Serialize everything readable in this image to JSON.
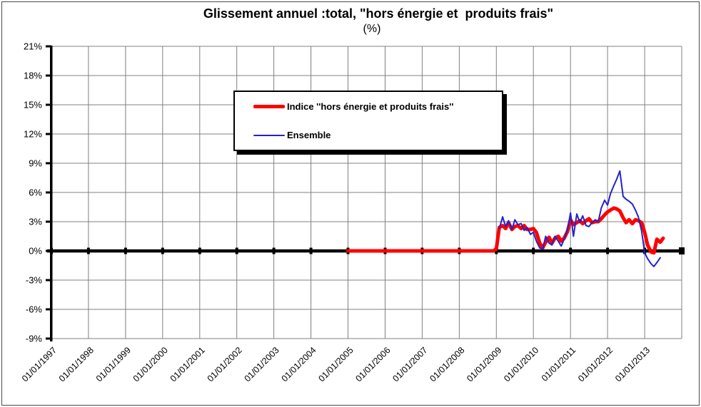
{
  "chart_data": {
    "type": "line",
    "title": "Glissement annuel :total, \"hors énergie et  produits frais\"",
    "subtitle": "(%)",
    "grid": true,
    "legend_position": "upper-center",
    "y_axis": {
      "min": -9,
      "max": 21,
      "step": 3,
      "unit": "%"
    },
    "y_tick_labels": [
      "21%",
      "18%",
      "15%",
      "12%",
      "9%",
      "6%",
      "3%",
      "0%",
      "-3%",
      "-6%",
      "-9%"
    ],
    "x_axis": {
      "domain_years": [
        1997,
        2014
      ],
      "tick_labels": [
        "01/01/1997",
        "01/01/1998",
        "01/01/1999",
        "01/01/2000",
        "01/01/2001",
        "01/01/2002",
        "01/01/2003",
        "01/01/2004",
        "01/01/2005",
        "01/01/2006",
        "01/01/2007",
        "01/01/2008",
        "01/01/2009",
        "01/01/2010",
        "01/01/2011",
        "01/01/2012",
        "01/01/2013"
      ]
    },
    "series": [
      {
        "name": "Indice ''hors énergie et produits frais''",
        "color": "#FF0000",
        "stroke_width": 5,
        "points": [
          [
            2005.0,
            0
          ],
          [
            2006.0,
            0
          ],
          [
            2007.0,
            0
          ],
          [
            2008.0,
            0
          ],
          [
            2008.92,
            0
          ],
          [
            2009.0,
            0.2
          ],
          [
            2009.08,
            2.4
          ],
          [
            2009.17,
            2.6
          ],
          [
            2009.25,
            2.3
          ],
          [
            2009.33,
            2.9
          ],
          [
            2009.42,
            2.2
          ],
          [
            2009.5,
            2.5
          ],
          [
            2009.58,
            2.6
          ],
          [
            2009.67,
            2.3
          ],
          [
            2009.75,
            2.6
          ],
          [
            2009.83,
            2.2
          ],
          [
            2009.92,
            2.2
          ],
          [
            2010.0,
            2.3
          ],
          [
            2010.08,
            1.9
          ],
          [
            2010.17,
            0.8
          ],
          [
            2010.25,
            0.3
          ],
          [
            2010.33,
            0.9
          ],
          [
            2010.42,
            1.4
          ],
          [
            2010.5,
            0.8
          ],
          [
            2010.58,
            1.3
          ],
          [
            2010.67,
            1.5
          ],
          [
            2010.75,
            1.0
          ],
          [
            2010.83,
            1.3
          ],
          [
            2010.92,
            2.0
          ],
          [
            2011.0,
            3.2
          ],
          [
            2011.08,
            2.7
          ],
          [
            2011.17,
            2.9
          ],
          [
            2011.25,
            3.1
          ],
          [
            2011.33,
            2.8
          ],
          [
            2011.42,
            3.1
          ],
          [
            2011.5,
            3.3
          ],
          [
            2011.58,
            2.9
          ],
          [
            2011.67,
            3.0
          ],
          [
            2011.75,
            3.0
          ],
          [
            2011.83,
            3.3
          ],
          [
            2011.92,
            3.7
          ],
          [
            2012.0,
            4.0
          ],
          [
            2012.08,
            4.2
          ],
          [
            2012.17,
            4.4
          ],
          [
            2012.25,
            4.3
          ],
          [
            2012.33,
            4.1
          ],
          [
            2012.42,
            3.4
          ],
          [
            2012.5,
            2.9
          ],
          [
            2012.58,
            3.2
          ],
          [
            2012.67,
            2.8
          ],
          [
            2012.75,
            3.2
          ],
          [
            2012.83,
            3.1
          ],
          [
            2012.92,
            2.9
          ],
          [
            2013.0,
            1.9
          ],
          [
            2013.08,
            0.6
          ],
          [
            2013.17,
            -0.1
          ],
          [
            2013.25,
            -0.2
          ],
          [
            2013.33,
            1.2
          ],
          [
            2013.42,
            0.9
          ],
          [
            2013.5,
            1.3
          ]
        ]
      },
      {
        "name": "Ensemble",
        "color": "#2222CC",
        "stroke_width": 2,
        "points": [
          [
            2009.08,
            2.3
          ],
          [
            2009.17,
            3.5
          ],
          [
            2009.25,
            2.5
          ],
          [
            2009.33,
            3.1
          ],
          [
            2009.42,
            2.2
          ],
          [
            2009.5,
            3.2
          ],
          [
            2009.58,
            2.7
          ],
          [
            2009.67,
            2.8
          ],
          [
            2009.75,
            2.1
          ],
          [
            2009.83,
            2.4
          ],
          [
            2009.92,
            1.7
          ],
          [
            2010.0,
            1.9
          ],
          [
            2010.08,
            1.0
          ],
          [
            2010.17,
            0.3
          ],
          [
            2010.25,
            0.2
          ],
          [
            2010.33,
            1.5
          ],
          [
            2010.42,
            0.8
          ],
          [
            2010.5,
            0.6
          ],
          [
            2010.58,
            1.5
          ],
          [
            2010.67,
            1.0
          ],
          [
            2010.75,
            0.5
          ],
          [
            2010.83,
            1.2
          ],
          [
            2010.92,
            2.2
          ],
          [
            2011.0,
            3.9
          ],
          [
            2011.08,
            1.5
          ],
          [
            2011.17,
            3.8
          ],
          [
            2011.25,
            2.9
          ],
          [
            2011.33,
            3.6
          ],
          [
            2011.42,
            2.6
          ],
          [
            2011.5,
            2.5
          ],
          [
            2011.58,
            2.9
          ],
          [
            2011.67,
            3.2
          ],
          [
            2011.75,
            3.0
          ],
          [
            2011.83,
            4.4
          ],
          [
            2011.92,
            5.2
          ],
          [
            2012.0,
            4.7
          ],
          [
            2012.08,
            5.9
          ],
          [
            2012.17,
            6.7
          ],
          [
            2012.25,
            7.4
          ],
          [
            2012.33,
            8.2
          ],
          [
            2012.42,
            5.6
          ],
          [
            2012.5,
            5.3
          ],
          [
            2012.58,
            5.1
          ],
          [
            2012.67,
            4.8
          ],
          [
            2012.75,
            4.2
          ],
          [
            2012.83,
            3.5
          ],
          [
            2012.92,
            2.0
          ],
          [
            2013.0,
            -0.2
          ],
          [
            2013.08,
            -0.8
          ],
          [
            2013.17,
            -1.3
          ],
          [
            2013.25,
            -1.6
          ],
          [
            2013.33,
            -1.2
          ],
          [
            2013.42,
            -0.7
          ]
        ]
      }
    ],
    "colors": {
      "axis": "#000000",
      "gridline": "#808080",
      "legend_shadow": "#000000"
    }
  }
}
